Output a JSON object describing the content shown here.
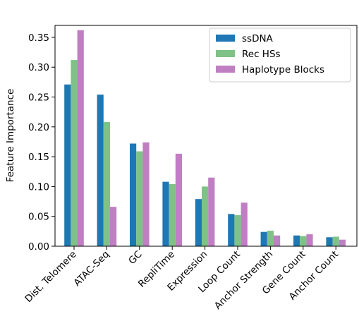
{
  "chart_data": {
    "type": "bar",
    "title": "",
    "xlabel": "",
    "ylabel": "Feature Importance",
    "ylim": [
      0,
      0.37
    ],
    "yticks": [
      "0.00",
      "0.05",
      "0.10",
      "0.15",
      "0.20",
      "0.25",
      "0.30",
      "0.35"
    ],
    "grid": false,
    "legend_position": "top-right",
    "categories": [
      "Dist. Telomere",
      "ATAC-Seq",
      "GC",
      "RepliTime",
      "Expression",
      "Loop Count",
      "Anchor Strength",
      "Gene Count",
      "Anchor Count"
    ],
    "series": [
      {
        "name": "ssDNA",
        "color": "#1f77b4",
        "values": [
          0.271,
          0.254,
          0.172,
          0.108,
          0.079,
          0.054,
          0.024,
          0.018,
          0.015
        ]
      },
      {
        "name": "Rec HSs",
        "color": "#7fc287",
        "values": [
          0.312,
          0.208,
          0.159,
          0.104,
          0.1,
          0.052,
          0.026,
          0.017,
          0.016
        ]
      },
      {
        "name": "Haplotype Blocks",
        "color": "#bf7fc2",
        "values": [
          0.362,
          0.066,
          0.174,
          0.155,
          0.115,
          0.073,
          0.018,
          0.02,
          0.011
        ]
      }
    ]
  }
}
